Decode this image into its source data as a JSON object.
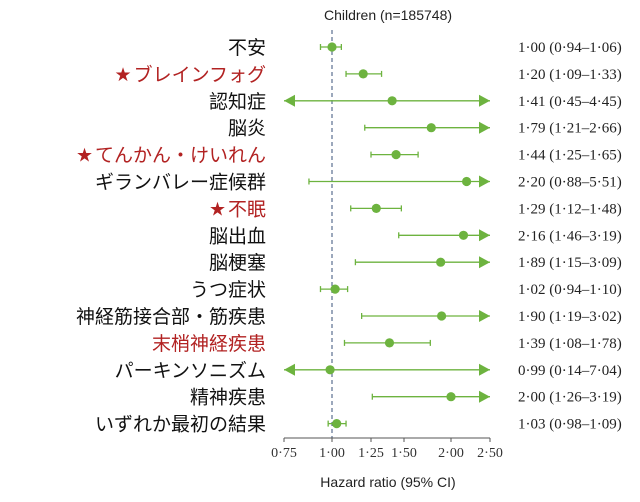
{
  "chart_data": {
    "type": "forest",
    "title": "Children (n=185748)",
    "xlabel": "Hazard ratio (95% CI)",
    "xlim": [
      0.75,
      2.5
    ],
    "x_ticks": [
      "0·75",
      "1·00",
      "1·25",
      "1·50",
      "2·00",
      "2·50"
    ],
    "x_tick_values": [
      0.75,
      1.0,
      1.25,
      1.5,
      2.0,
      2.5
    ],
    "reference_line": 1.0,
    "colors": {
      "point": "#6db33f",
      "reference": "#5b6f8f",
      "highlight_text": "#b22222",
      "text": "#111111"
    },
    "rows": [
      {
        "label": "不安",
        "highlight": false,
        "star": false,
        "hr": 1.0,
        "lo": 0.94,
        "hi": 1.06,
        "text": "1·00 (0·94–1·06)"
      },
      {
        "label": "ブレインフォグ",
        "highlight": true,
        "star": true,
        "hr": 1.2,
        "lo": 1.09,
        "hi": 1.33,
        "text": "1·20 (1·09–1·33)"
      },
      {
        "label": "認知症",
        "highlight": false,
        "star": false,
        "hr": 1.41,
        "lo": 0.45,
        "hi": 4.45,
        "text": "1·41 (0·45–4·45)"
      },
      {
        "label": "脳炎",
        "highlight": false,
        "star": false,
        "hr": 1.79,
        "lo": 1.21,
        "hi": 2.66,
        "text": "1·79 (1·21–2·66)"
      },
      {
        "label": "てんかん・けいれん",
        "highlight": true,
        "star": true,
        "hr": 1.44,
        "lo": 1.25,
        "hi": 1.65,
        "text": "1·44 (1·25–1·65)"
      },
      {
        "label": "ギランバレー症候群",
        "highlight": false,
        "star": false,
        "hr": 2.2,
        "lo": 0.88,
        "hi": 5.51,
        "text": "2·20 (0·88–5·51)"
      },
      {
        "label": "不眠",
        "highlight": true,
        "star": true,
        "hr": 1.29,
        "lo": 1.12,
        "hi": 1.48,
        "text": "1·29 (1·12–1·48)"
      },
      {
        "label": "脳出血",
        "highlight": false,
        "star": false,
        "hr": 2.16,
        "lo": 1.46,
        "hi": 3.19,
        "text": "2·16 (1·46–3·19)"
      },
      {
        "label": "脳梗塞",
        "highlight": false,
        "star": false,
        "hr": 1.89,
        "lo": 1.15,
        "hi": 3.09,
        "text": "1·89 (1·15–3·09)"
      },
      {
        "label": "うつ症状",
        "highlight": false,
        "star": false,
        "hr": 1.02,
        "lo": 0.94,
        "hi": 1.1,
        "text": "1·02 (0·94–1·10)"
      },
      {
        "label": "神経筋接合部・筋疾患",
        "highlight": false,
        "star": false,
        "hr": 1.9,
        "lo": 1.19,
        "hi": 3.02,
        "text": "1·90 (1·19–3·02)"
      },
      {
        "label": "末梢神経疾患",
        "highlight": true,
        "star": false,
        "hr": 1.39,
        "lo": 1.08,
        "hi": 1.78,
        "text": "1·39 (1·08–1·78)"
      },
      {
        "label": "パーキンソニズム",
        "highlight": false,
        "star": false,
        "hr": 0.99,
        "lo": 0.14,
        "hi": 7.04,
        "text": "0·99 (0·14–7·04)"
      },
      {
        "label": "精神疾患",
        "highlight": false,
        "star": false,
        "hr": 2.0,
        "lo": 1.26,
        "hi": 3.19,
        "text": "2·00 (1·26–3·19)"
      },
      {
        "label": "いずれか最初の結果",
        "highlight": false,
        "star": false,
        "hr": 1.03,
        "lo": 0.98,
        "hi": 1.09,
        "text": "1·03 (0·98–1·09)"
      }
    ]
  }
}
